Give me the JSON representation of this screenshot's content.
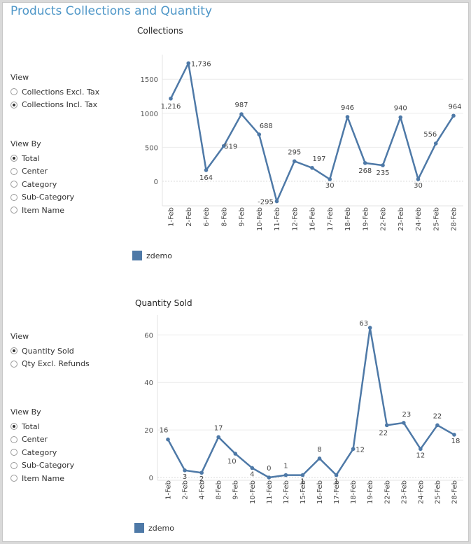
{
  "page": {
    "title": "Products Collections and Quantity"
  },
  "colors": {
    "line": "#4e79a7",
    "title": "#4f97c8",
    "axis": "#888888",
    "grid": "#ececec"
  },
  "collections_panel": {
    "view": {
      "title": "View",
      "options": [
        {
          "label": "Collections Excl. Tax",
          "checked": false
        },
        {
          "label": "Collections Incl. Tax",
          "checked": true
        }
      ]
    },
    "view_by": {
      "title": "View By",
      "options": [
        {
          "label": "Total",
          "checked": true
        },
        {
          "label": "Center",
          "checked": false
        },
        {
          "label": "Category",
          "checked": false
        },
        {
          "label": "Sub-Category",
          "checked": false
        },
        {
          "label": "Item Name",
          "checked": false
        }
      ]
    }
  },
  "quantity_panel": {
    "view": {
      "title": "View",
      "options": [
        {
          "label": "Quantity Sold",
          "checked": true
        },
        {
          "label": "Qty Excl. Refunds",
          "checked": false
        }
      ]
    },
    "view_by": {
      "title": "View By",
      "options": [
        {
          "label": "Total",
          "checked": true
        },
        {
          "label": "Center",
          "checked": false
        },
        {
          "label": "Category",
          "checked": false
        },
        {
          "label": "Sub-Category",
          "checked": false
        },
        {
          "label": "Item Name",
          "checked": false
        }
      ]
    }
  },
  "chart_data": [
    {
      "type": "line",
      "title": "Collections",
      "categories": [
        "1-Feb",
        "2-Feb",
        "6-Feb",
        "8-Feb",
        "9-Feb",
        "10-Feb",
        "11-Feb",
        "12-Feb",
        "16-Feb",
        "17-Feb",
        "18-Feb",
        "19-Feb",
        "22-Feb",
        "23-Feb",
        "24-Feb",
        "25-Feb",
        "28-Feb"
      ],
      "series": [
        {
          "name": "zdemo",
          "values": [
            1216,
            1736,
            164,
            519,
            987,
            688,
            -295,
            295,
            197,
            30,
            946,
            268,
            235,
            940,
            30,
            556,
            964
          ]
        }
      ],
      "data_labels": [
        "1,216",
        "1,736",
        "164",
        "519",
        "987",
        "688",
        "-295",
        "295",
        "197",
        "30",
        "946",
        "268",
        "235",
        "940",
        "30",
        "556",
        "964"
      ],
      "yticks": [
        0,
        500,
        1000,
        1500
      ],
      "ytick_labels": [
        "0",
        "500",
        "1000",
        "1500"
      ],
      "ylim": [
        -320,
        1780
      ],
      "grid": true,
      "legend_position": "bottom-left"
    },
    {
      "type": "line",
      "title": "Quantity Sold",
      "categories": [
        "1-Feb",
        "2-Feb",
        "4-Feb",
        "8-Feb",
        "9-Feb",
        "10-Feb",
        "11-Feb",
        "12-Feb",
        "15-Feb",
        "16-Feb",
        "17-Feb",
        "18-Feb",
        "19-Feb",
        "22-Feb",
        "23-Feb",
        "24-Feb",
        "25-Feb",
        "28-Feb"
      ],
      "series": [
        {
          "name": "zdemo",
          "values": [
            16,
            3,
            2,
            17,
            10,
            4,
            0,
            1,
            1,
            8,
            1,
            12,
            63,
            22,
            23,
            12,
            22,
            18
          ]
        }
      ],
      "data_labels": [
        "16",
        "3",
        "2",
        "17",
        "10",
        "4",
        "0",
        "1",
        "1",
        "8",
        "1",
        "12",
        "63",
        "22",
        "23",
        "12",
        "22",
        "18"
      ],
      "yticks": [
        0,
        20,
        40,
        60
      ],
      "ytick_labels": [
        "0",
        "20",
        "40",
        "60"
      ],
      "ylim": [
        0,
        66
      ],
      "grid": true,
      "legend_position": "bottom-left"
    }
  ]
}
